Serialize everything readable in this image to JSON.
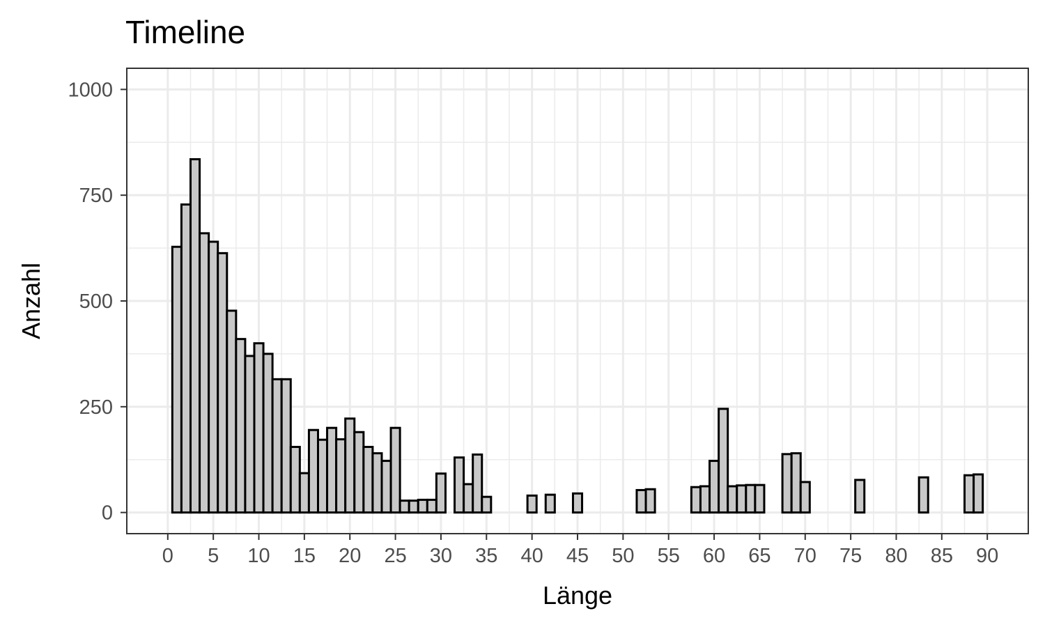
{
  "chart_data": {
    "type": "bar",
    "title": "Timeline",
    "xlabel": "Länge",
    "ylabel": "Anzahl",
    "xlim": [
      -4.5,
      94.5
    ],
    "ylim": [
      -50,
      1050
    ],
    "x_ticks": [
      0,
      5,
      10,
      15,
      20,
      25,
      30,
      35,
      40,
      45,
      50,
      55,
      60,
      65,
      70,
      75,
      80,
      85,
      90
    ],
    "y_ticks": [
      0,
      250,
      500,
      750,
      1000
    ],
    "bar_width": 1,
    "grid": true,
    "x": [
      1,
      2,
      3,
      4,
      5,
      6,
      7,
      8,
      9,
      10,
      11,
      12,
      13,
      14,
      15,
      16,
      17,
      18,
      19,
      20,
      21,
      22,
      23,
      24,
      25,
      26,
      27,
      28,
      29,
      30,
      32,
      33,
      34,
      35,
      40,
      42,
      45,
      52,
      53,
      58,
      59,
      60,
      61,
      62,
      63,
      64,
      65,
      68,
      69,
      70,
      76,
      83,
      88,
      89
    ],
    "values": [
      628,
      728,
      835,
      660,
      640,
      613,
      477,
      410,
      370,
      400,
      375,
      315,
      315,
      155,
      93,
      195,
      172,
      200,
      173,
      222,
      190,
      155,
      140,
      122,
      200,
      28,
      28,
      30,
      30,
      92,
      130,
      67,
      137,
      37,
      40,
      42,
      45,
      53,
      55,
      60,
      62,
      122,
      245,
      62,
      64,
      65,
      65,
      138,
      140,
      72,
      77,
      83,
      88,
      90
    ]
  }
}
